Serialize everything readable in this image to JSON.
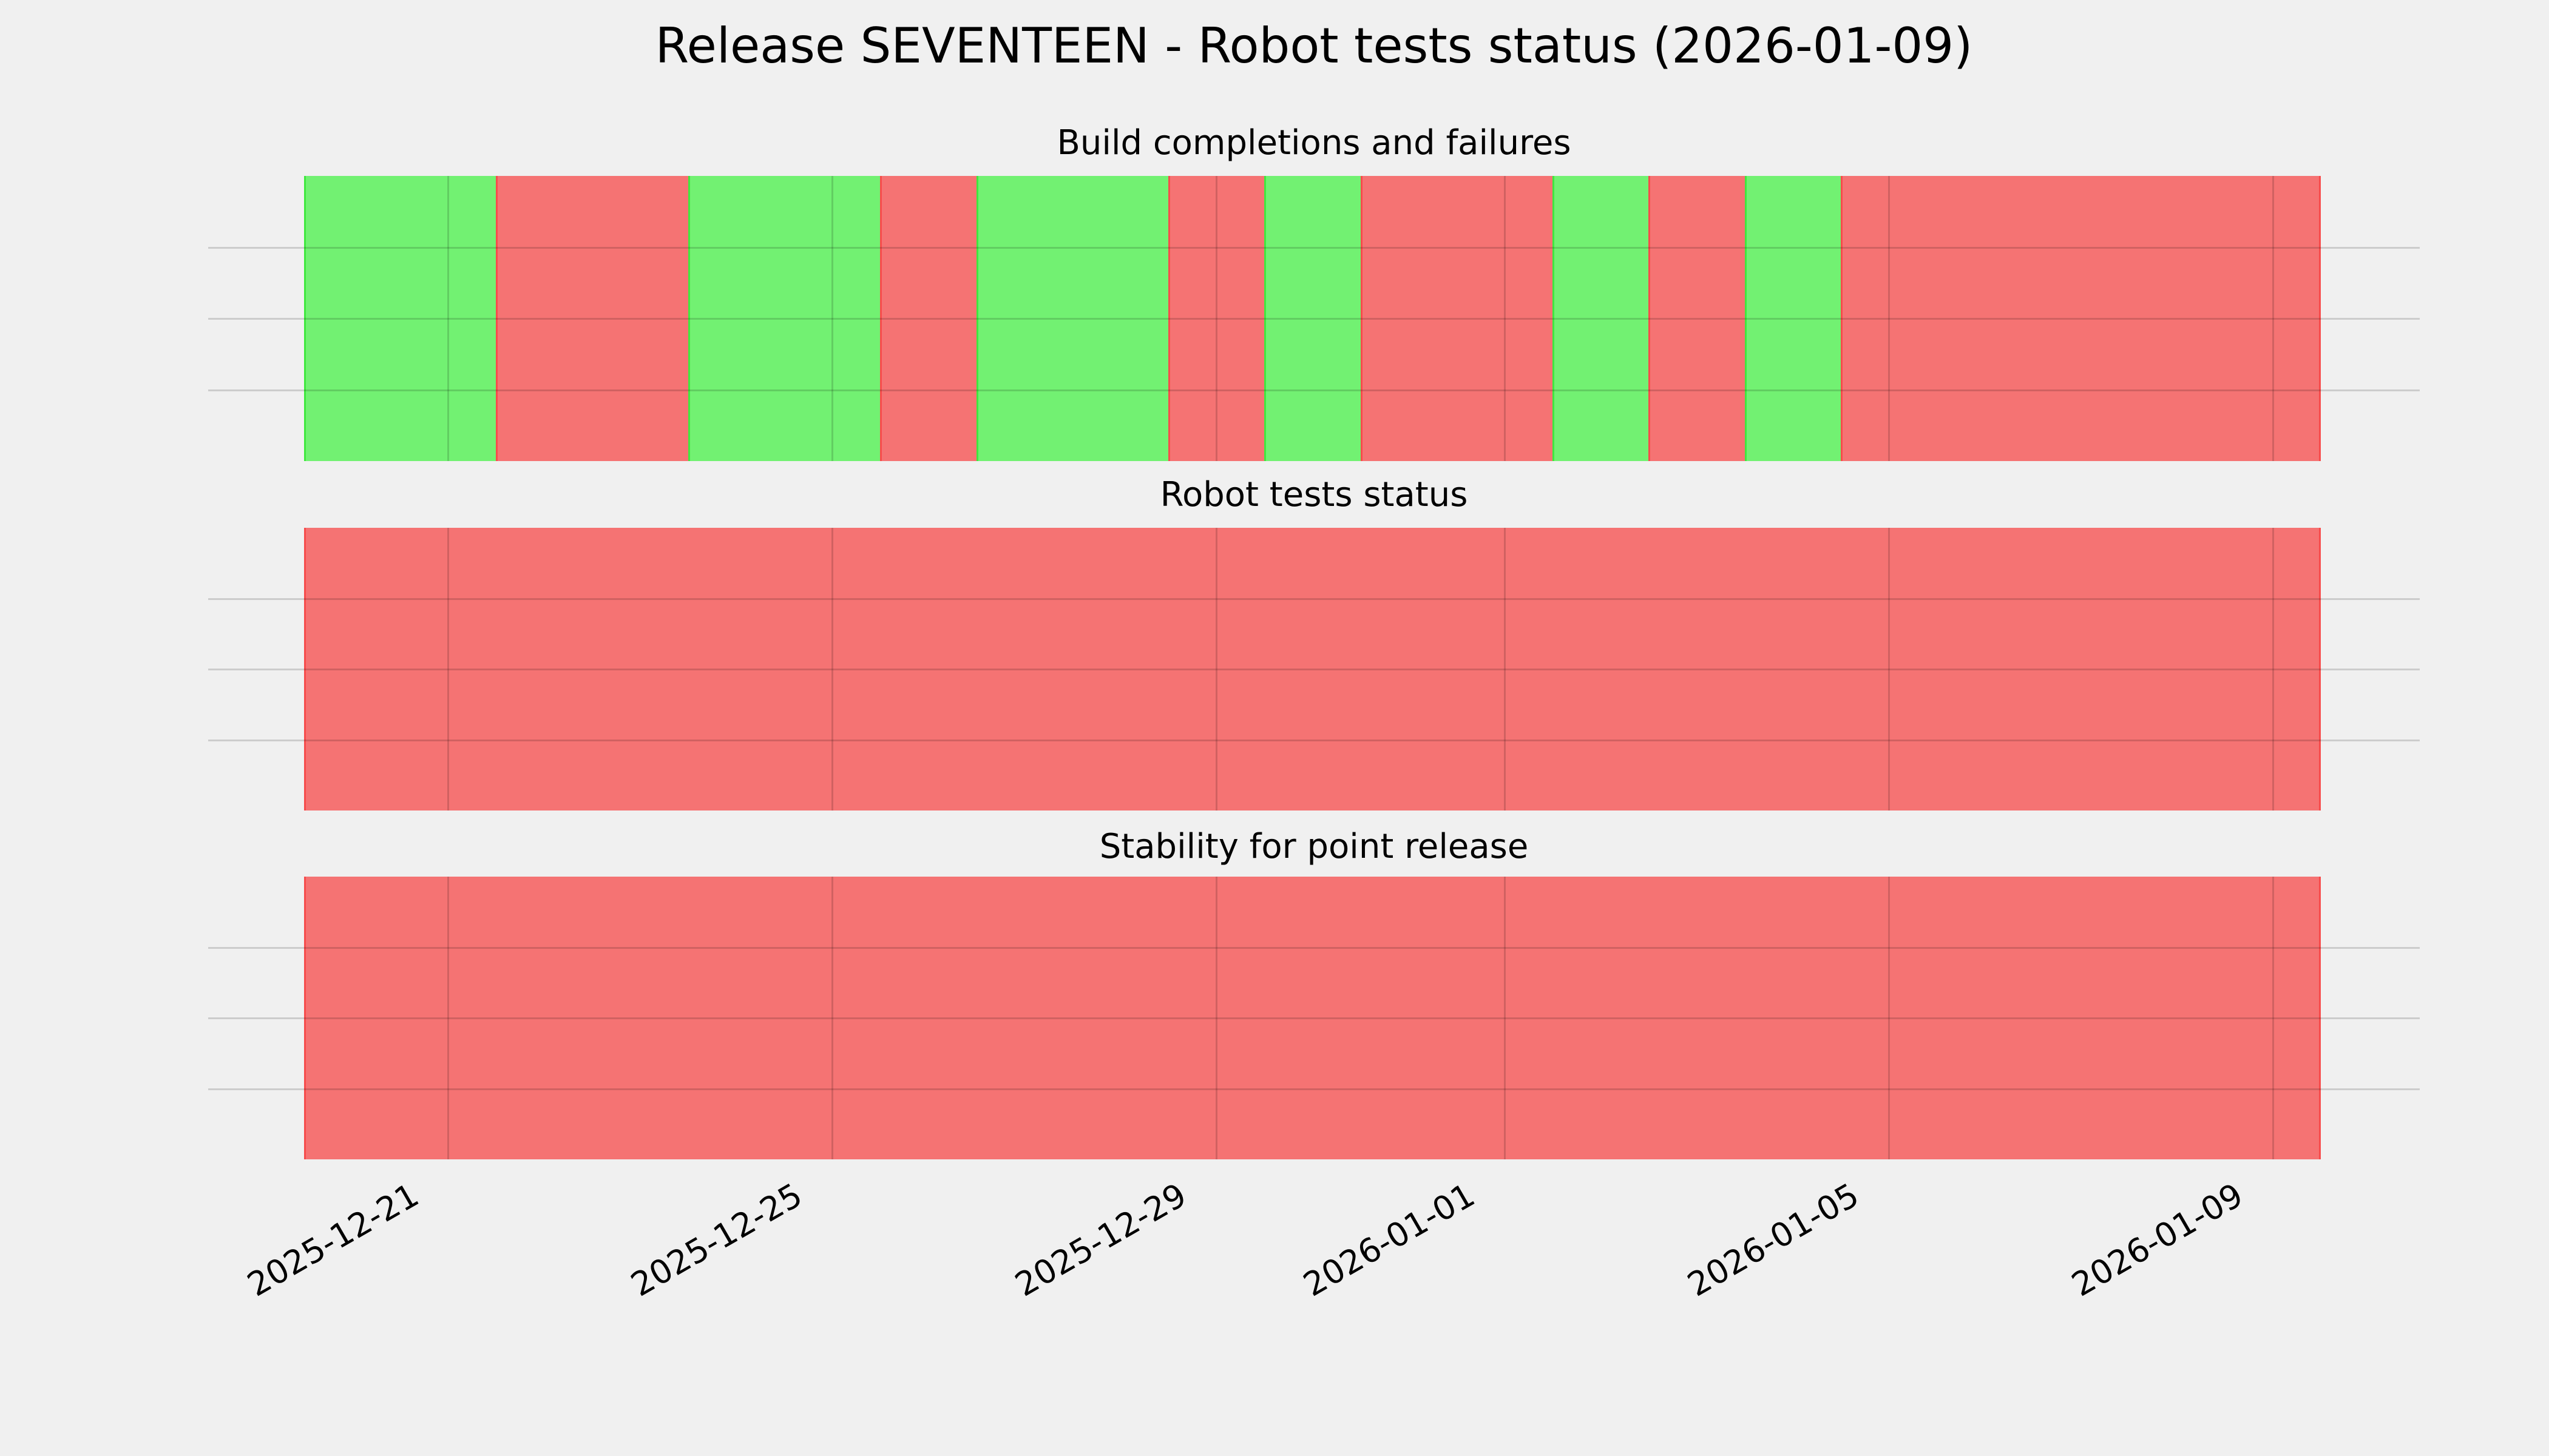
{
  "title": "Release SEVENTEEN - Robot tests status (2026-01-09)",
  "background_color": "#f0f0f0",
  "status_colors": {
    "pass": "#72f172",
    "fail": "#f57373",
    "pass_edge": "#3fe83f",
    "fail_edge": "#f74c4c",
    "grid": "rgba(0,0,0,0.15)"
  },
  "x_tick_labels": [
    "2025-12-21",
    "2025-12-25",
    "2025-12-29",
    "2026-01-01",
    "2026-01-05",
    "2026-01-09"
  ],
  "x_tick_day_indices": [
    1,
    5,
    9,
    12,
    16,
    20
  ],
  "chart_data": [
    {
      "type": "heatmap",
      "title": "Build completions and failures",
      "categories": [
        "2025-12-20",
        "2025-12-21",
        "2025-12-22",
        "2025-12-23",
        "2025-12-24",
        "2025-12-25",
        "2025-12-26",
        "2025-12-27",
        "2025-12-28",
        "2025-12-29",
        "2025-12-30",
        "2025-12-31",
        "2026-01-01",
        "2026-01-02",
        "2026-01-03",
        "2026-01-04",
        "2026-01-05",
        "2026-01-06",
        "2026-01-07",
        "2026-01-08",
        "2026-01-09"
      ],
      "values": [
        "pass",
        "pass",
        "fail",
        "fail",
        "pass",
        "pass",
        "fail",
        "pass",
        "pass",
        "fail",
        "pass",
        "fail",
        "fail",
        "pass",
        "fail",
        "pass",
        "fail",
        "fail",
        "fail",
        "fail",
        "fail"
      ],
      "legend_position": "none",
      "grid": "on"
    },
    {
      "type": "heatmap",
      "title": "Robot tests status",
      "categories": [
        "2025-12-20",
        "2025-12-21",
        "2025-12-22",
        "2025-12-23",
        "2025-12-24",
        "2025-12-25",
        "2025-12-26",
        "2025-12-27",
        "2025-12-28",
        "2025-12-29",
        "2025-12-30",
        "2025-12-31",
        "2026-01-01",
        "2026-01-02",
        "2026-01-03",
        "2026-01-04",
        "2026-01-05",
        "2026-01-06",
        "2026-01-07",
        "2026-01-08",
        "2026-01-09"
      ],
      "values": [
        "fail",
        "fail",
        "fail",
        "fail",
        "fail",
        "fail",
        "fail",
        "fail",
        "fail",
        "fail",
        "fail",
        "fail",
        "fail",
        "fail",
        "fail",
        "fail",
        "fail",
        "fail",
        "fail",
        "fail",
        "fail"
      ],
      "legend_position": "none",
      "grid": "on"
    },
    {
      "type": "heatmap",
      "title": "Stability for point release",
      "categories": [
        "2025-12-20",
        "2025-12-21",
        "2025-12-22",
        "2025-12-23",
        "2025-12-24",
        "2025-12-25",
        "2025-12-26",
        "2025-12-27",
        "2025-12-28",
        "2025-12-29",
        "2025-12-30",
        "2025-12-31",
        "2026-01-01",
        "2026-01-02",
        "2026-01-03",
        "2026-01-04",
        "2026-01-05",
        "2026-01-06",
        "2026-01-07",
        "2026-01-08",
        "2026-01-09"
      ],
      "values": [
        "fail",
        "fail",
        "fail",
        "fail",
        "fail",
        "fail",
        "fail",
        "fail",
        "fail",
        "fail",
        "fail",
        "fail",
        "fail",
        "fail",
        "fail",
        "fail",
        "fail",
        "fail",
        "fail",
        "fail",
        "fail"
      ],
      "legend_position": "none",
      "grid": "on"
    }
  ]
}
